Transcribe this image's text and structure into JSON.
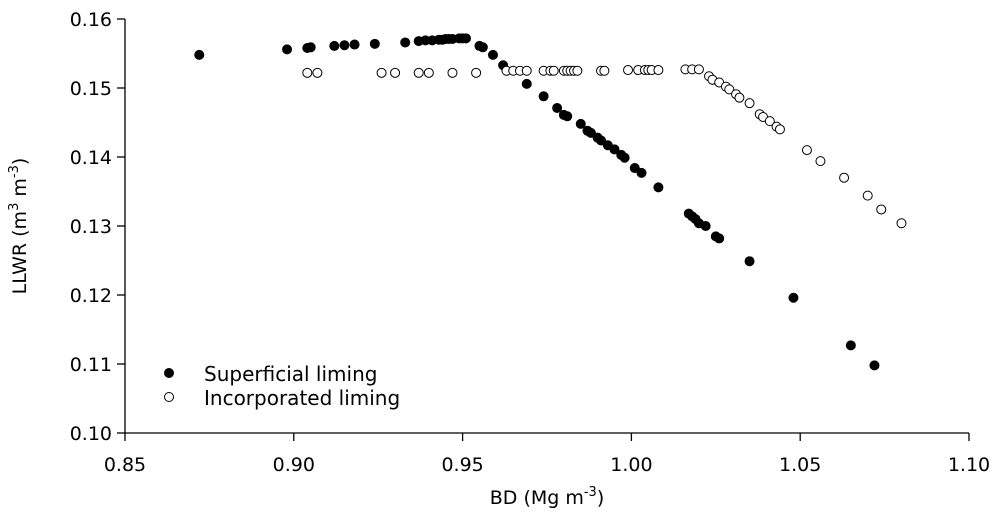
{
  "chart_data": {
    "type": "scatter",
    "xlabel": {
      "base": "BD (Mg m",
      "sup": "-3",
      "close": ")"
    },
    "ylabel": {
      "base": "LLWR (m",
      "sup1": "3",
      "mid": " m",
      "sup2": "-3",
      "close": ")"
    },
    "xlim": [
      0.85,
      1.1
    ],
    "ylim": [
      0.1,
      0.16
    ],
    "x_ticks": [
      "0.85",
      "0.90",
      "0.95",
      "1.00",
      "1.05",
      "1.10"
    ],
    "y_ticks": [
      "0.10",
      "0.11",
      "0.12",
      "0.13",
      "0.14",
      "0.15",
      "0.16"
    ],
    "legend_position": "bottom-left",
    "series": [
      {
        "name": "Superficial liming",
        "marker": "filled-circle",
        "points": [
          [
            0.872,
            0.1548
          ],
          [
            0.898,
            0.1556
          ],
          [
            0.904,
            0.1558
          ],
          [
            0.905,
            0.1559
          ],
          [
            0.912,
            0.1561
          ],
          [
            0.915,
            0.1562
          ],
          [
            0.918,
            0.1563
          ],
          [
            0.924,
            0.1564
          ],
          [
            0.933,
            0.1566
          ],
          [
            0.937,
            0.1568
          ],
          [
            0.939,
            0.1569
          ],
          [
            0.941,
            0.1569
          ],
          [
            0.943,
            0.157
          ],
          [
            0.944,
            0.157
          ],
          [
            0.945,
            0.1571
          ],
          [
            0.946,
            0.1571
          ],
          [
            0.947,
            0.1571
          ],
          [
            0.949,
            0.1572
          ],
          [
            0.95,
            0.1572
          ],
          [
            0.951,
            0.1572
          ],
          [
            0.955,
            0.1561
          ],
          [
            0.956,
            0.1559
          ],
          [
            0.959,
            0.1548
          ],
          [
            0.962,
            0.1533
          ],
          [
            0.969,
            0.1506
          ],
          [
            0.974,
            0.1488
          ],
          [
            0.978,
            0.1471
          ],
          [
            0.98,
            0.1461
          ],
          [
            0.981,
            0.1459
          ],
          [
            0.985,
            0.1448
          ],
          [
            0.987,
            0.1438
          ],
          [
            0.988,
            0.1435
          ],
          [
            0.99,
            0.1428
          ],
          [
            0.991,
            0.1424
          ],
          [
            0.993,
            0.1417
          ],
          [
            0.995,
            0.1411
          ],
          [
            0.997,
            0.1403
          ],
          [
            0.998,
            0.1399
          ],
          [
            1.001,
            0.1384
          ],
          [
            1.003,
            0.1377
          ],
          [
            1.008,
            0.1356
          ],
          [
            1.017,
            0.1318
          ],
          [
            1.018,
            0.1314
          ],
          [
            1.019,
            0.131
          ],
          [
            1.02,
            0.1304
          ],
          [
            1.022,
            0.13
          ],
          [
            1.025,
            0.1285
          ],
          [
            1.026,
            0.1282
          ],
          [
            1.035,
            0.1249
          ],
          [
            1.048,
            0.1196
          ],
          [
            1.065,
            0.1127
          ],
          [
            1.072,
            0.1098
          ]
        ]
      },
      {
        "name": "Incorporated liming",
        "marker": "open-circle",
        "points": [
          [
            0.904,
            0.1522
          ],
          [
            0.907,
            0.1522
          ],
          [
            0.926,
            0.1522
          ],
          [
            0.93,
            0.1522
          ],
          [
            0.937,
            0.1522
          ],
          [
            0.94,
            0.1522
          ],
          [
            0.947,
            0.1522
          ],
          [
            0.954,
            0.1522
          ],
          [
            0.963,
            0.1525
          ],
          [
            0.965,
            0.1525
          ],
          [
            0.967,
            0.1525
          ],
          [
            0.969,
            0.1525
          ],
          [
            0.974,
            0.1525
          ],
          [
            0.976,
            0.1525
          ],
          [
            0.977,
            0.1525
          ],
          [
            0.98,
            0.1525
          ],
          [
            0.981,
            0.1525
          ],
          [
            0.982,
            0.1525
          ],
          [
            0.983,
            0.1525
          ],
          [
            0.984,
            0.1525
          ],
          [
            0.991,
            0.1525
          ],
          [
            0.992,
            0.1525
          ],
          [
            0.999,
            0.1526
          ],
          [
            1.002,
            0.1526
          ],
          [
            1.004,
            0.1526
          ],
          [
            1.005,
            0.1526
          ],
          [
            1.006,
            0.1526
          ],
          [
            1.008,
            0.1526
          ],
          [
            1.016,
            0.1527
          ],
          [
            1.018,
            0.1527
          ],
          [
            1.02,
            0.1527
          ],
          [
            1.023,
            0.1517
          ],
          [
            1.024,
            0.1512
          ],
          [
            1.026,
            0.1508
          ],
          [
            1.028,
            0.1502
          ],
          [
            1.029,
            0.1498
          ],
          [
            1.031,
            0.1491
          ],
          [
            1.032,
            0.1486
          ],
          [
            1.035,
            0.1478
          ],
          [
            1.038,
            0.1462
          ],
          [
            1.039,
            0.1458
          ],
          [
            1.041,
            0.1452
          ],
          [
            1.043,
            0.1444
          ],
          [
            1.044,
            0.144
          ],
          [
            1.052,
            0.141
          ],
          [
            1.056,
            0.1394
          ],
          [
            1.063,
            0.137
          ],
          [
            1.07,
            0.1344
          ],
          [
            1.074,
            0.1324
          ],
          [
            1.08,
            0.1304
          ]
        ]
      }
    ]
  }
}
